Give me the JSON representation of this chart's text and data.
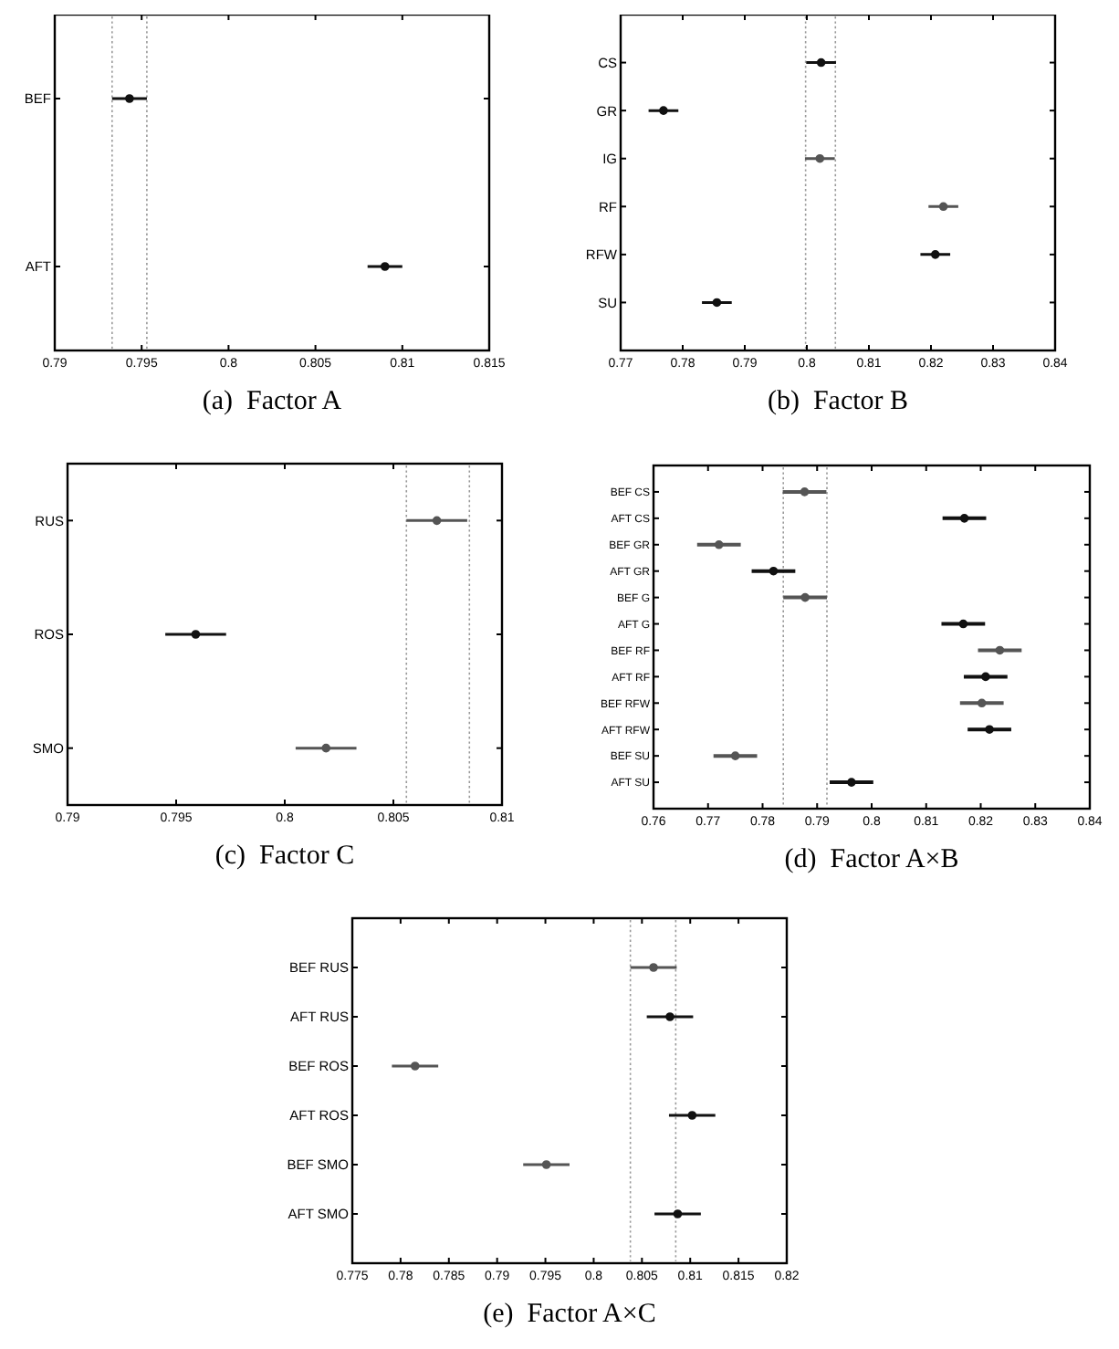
{
  "chart_data": [
    {
      "type": "scatter",
      "title": "(a)  Factor A",
      "orientation": "horizontal",
      "marker": "circle",
      "categories": [
        "BEF",
        "AFT"
      ],
      "values": [
        0.7943,
        0.809
      ],
      "errors": [
        0.001,
        0.001
      ],
      "colors": [
        "#111111",
        "#111111"
      ],
      "xlim": [
        0.79,
        0.815
      ],
      "xticks": [
        0.79,
        0.795,
        0.8,
        0.805,
        0.81,
        0.815
      ],
      "ref_lines": [
        {
          "axis": "x",
          "value": 0.7933,
          "color": "#999999",
          "line_style": "dotted"
        },
        {
          "axis": "x",
          "value": 0.7953,
          "color": "#999999",
          "line_style": "dotted"
        }
      ]
    },
    {
      "type": "scatter",
      "title": "(b)  Factor B",
      "orientation": "horizontal",
      "marker": "circle",
      "categories": [
        "CS",
        "GR",
        "IG",
        "RF",
        "RFW",
        "SU"
      ],
      "values": [
        0.8023,
        0.7769,
        0.8021,
        0.822,
        0.8207,
        0.7855
      ],
      "errors": [
        0.0024,
        0.0024,
        0.0024,
        0.0024,
        0.0024,
        0.0024
      ],
      "colors": [
        "#111111",
        "#111111",
        "#555555",
        "#555555",
        "#111111",
        "#111111"
      ],
      "xlim": [
        0.77,
        0.84
      ],
      "xticks": [
        0.77,
        0.78,
        0.79,
        0.8,
        0.81,
        0.82,
        0.83,
        0.84
      ],
      "ref_lines": [
        {
          "axis": "x",
          "value": 0.7998,
          "color": "#999999",
          "line_style": "dotted"
        },
        {
          "axis": "x",
          "value": 0.8046,
          "color": "#999999",
          "line_style": "dotted"
        }
      ]
    },
    {
      "type": "scatter",
      "title": "(c)  Factor C",
      "orientation": "horizontal",
      "marker": "circle",
      "categories": [
        "RUS",
        "ROS",
        "SMO"
      ],
      "values": [
        0.807,
        0.7959,
        0.8019
      ],
      "errors": [
        0.0014,
        0.0014,
        0.0014
      ],
      "colors": [
        "#555555",
        "#111111",
        "#555555"
      ],
      "xlim": [
        0.79,
        0.81
      ],
      "xticks": [
        0.79,
        0.795,
        0.8,
        0.805,
        0.81
      ],
      "ref_lines": [
        {
          "axis": "x",
          "value": 0.8056,
          "color": "#999999",
          "line_style": "dotted"
        },
        {
          "axis": "x",
          "value": 0.8085,
          "color": "#999999",
          "line_style": "dotted"
        }
      ]
    },
    {
      "type": "scatter",
      "title": "(d)  Factor A×B",
      "orientation": "horizontal",
      "marker": "circle",
      "categories": [
        "BEF CS",
        "AFT CS",
        "BEF GR",
        "AFT GR",
        "BEF G",
        "AFT G",
        "BEF RF",
        "AFT RF",
        "BEF RFW",
        "AFT RFW",
        "BEF SU",
        "AFT SU"
      ],
      "values": [
        0.7877,
        0.817,
        0.772,
        0.782,
        0.7878,
        0.8168,
        0.8235,
        0.8209,
        0.8202,
        0.8216,
        0.775,
        0.7963
      ],
      "errors": [
        0.004,
        0.004,
        0.004,
        0.004,
        0.004,
        0.004,
        0.004,
        0.004,
        0.004,
        0.004,
        0.004,
        0.004
      ],
      "colors": [
        "#555555",
        "#111111",
        "#555555",
        "#111111",
        "#555555",
        "#111111",
        "#555555",
        "#111111",
        "#555555",
        "#111111",
        "#555555",
        "#111111"
      ],
      "xlim": [
        0.76,
        0.84
      ],
      "xticks": [
        0.76,
        0.77,
        0.78,
        0.79,
        0.8,
        0.81,
        0.82,
        0.83,
        0.84
      ],
      "ref_lines": [
        {
          "axis": "x",
          "value": 0.7838,
          "color": "#999999",
          "line_style": "dotted"
        },
        {
          "axis": "x",
          "value": 0.7918,
          "color": "#999999",
          "line_style": "dotted"
        }
      ]
    },
    {
      "type": "scatter",
      "title": "(e)  Factor A×C",
      "orientation": "horizontal",
      "marker": "circle",
      "categories": [
        "BEF RUS",
        "AFT RUS",
        "BEF ROS",
        "AFT ROS",
        "BEF SMO",
        "AFT SMO"
      ],
      "values": [
        0.8062,
        0.8079,
        0.7815,
        0.8102,
        0.7951,
        0.8087
      ],
      "errors": [
        0.0024,
        0.0024,
        0.0024,
        0.0024,
        0.0024,
        0.0024
      ],
      "colors": [
        "#555555",
        "#111111",
        "#555555",
        "#111111",
        "#555555",
        "#111111"
      ],
      "xlim": [
        0.775,
        0.82
      ],
      "xticks": [
        0.775,
        0.78,
        0.785,
        0.79,
        0.795,
        0.8,
        0.805,
        0.81,
        0.815,
        0.82
      ],
      "ref_lines": [
        {
          "axis": "x",
          "value": 0.8038,
          "color": "#999999",
          "line_style": "dotted"
        },
        {
          "axis": "x",
          "value": 0.8085,
          "color": "#999999",
          "line_style": "dotted"
        }
      ]
    }
  ]
}
